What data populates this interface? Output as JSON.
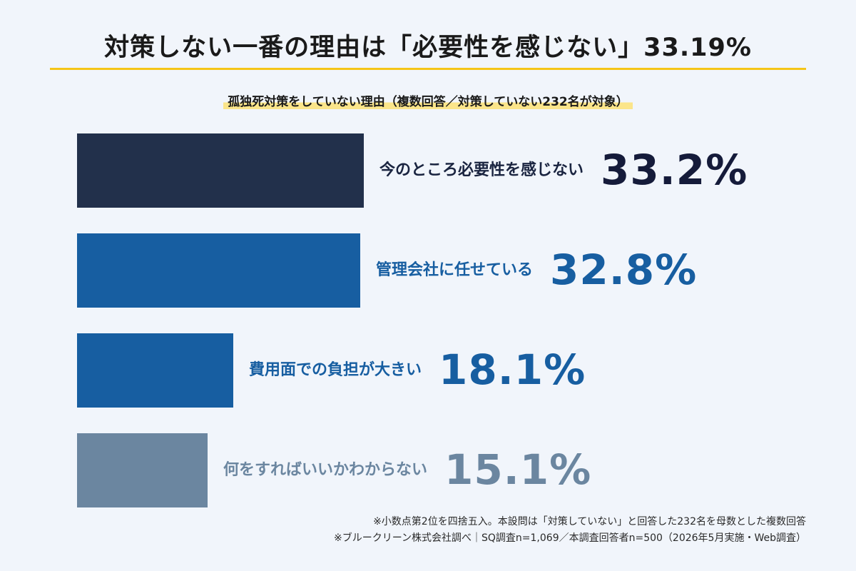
{
  "header": {
    "title": "対策しない一番の理由は「必要性を感じない」33.19%"
  },
  "chart_data": {
    "type": "bar",
    "orientation": "horizontal",
    "title": "孤独死対策をしていない理由（複数回答／対策していない232名が対象）",
    "unit": "%",
    "categories": [
      "今のところ必要性を感じない",
      "管理会社に任せている",
      "費用面での負担が大きい",
      "何をすればいいかわからない"
    ],
    "values": [
      33.2,
      32.8,
      18.1,
      15.1
    ],
    "value_labels": [
      "33.2%",
      "32.8%",
      "18.1%",
      "15.1%"
    ],
    "bar_colors": [
      "#22304b",
      "#175ea1",
      "#175ea1",
      "#6b86a0"
    ],
    "label_colors": [
      "#1a2440",
      "#175ea1",
      "#175ea1",
      "#6b86a0"
    ],
    "value_colors": [
      "#151b3a",
      "#175ea1",
      "#175ea1",
      "#6b86a0"
    ],
    "xlim": [
      0,
      33.2
    ],
    "grid": false,
    "legend": "none"
  },
  "notes": {
    "line1": "※小数点第2位を四捨五入。本設問は「対策していない」と回答した232名を母数とした複数回答",
    "line2": "※ブルークリーン株式会社調べ｜SQ調査n=1,069／本調査回答者n=500（2026年5月実施・Web調査）"
  }
}
